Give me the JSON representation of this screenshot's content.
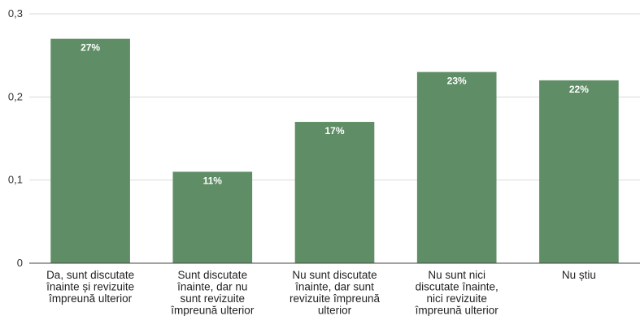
{
  "chart_data": {
    "type": "bar",
    "title": "",
    "xlabel": "",
    "ylabel": "",
    "ylim": [
      0,
      0.3
    ],
    "yticks": [
      0,
      0.1,
      0.2,
      0.3
    ],
    "ytick_labels": [
      "0",
      "0,1",
      "0,2",
      "0,3"
    ],
    "grid": true,
    "bar_color": "#5f8e66",
    "categories": [
      [
        "Da, sunt discutate",
        "înainte și revizuite",
        "împreună ulterior"
      ],
      [
        "Sunt discutate",
        "înainte, dar nu",
        "sunt revizuite",
        "împreună ulterior"
      ],
      [
        "Nu sunt discutate",
        "înainte, dar sunt",
        "revizuite împreună",
        "ulterior"
      ],
      [
        "Nu sunt nici",
        "discutate înainte,",
        "nici revizuite",
        "împreună ulterior"
      ],
      [
        "Nu știu"
      ]
    ],
    "values": [
      0.27,
      0.11,
      0.17,
      0.23,
      0.22
    ],
    "data_labels": [
      "27%",
      "11%",
      "17%",
      "23%",
      "22%"
    ]
  }
}
